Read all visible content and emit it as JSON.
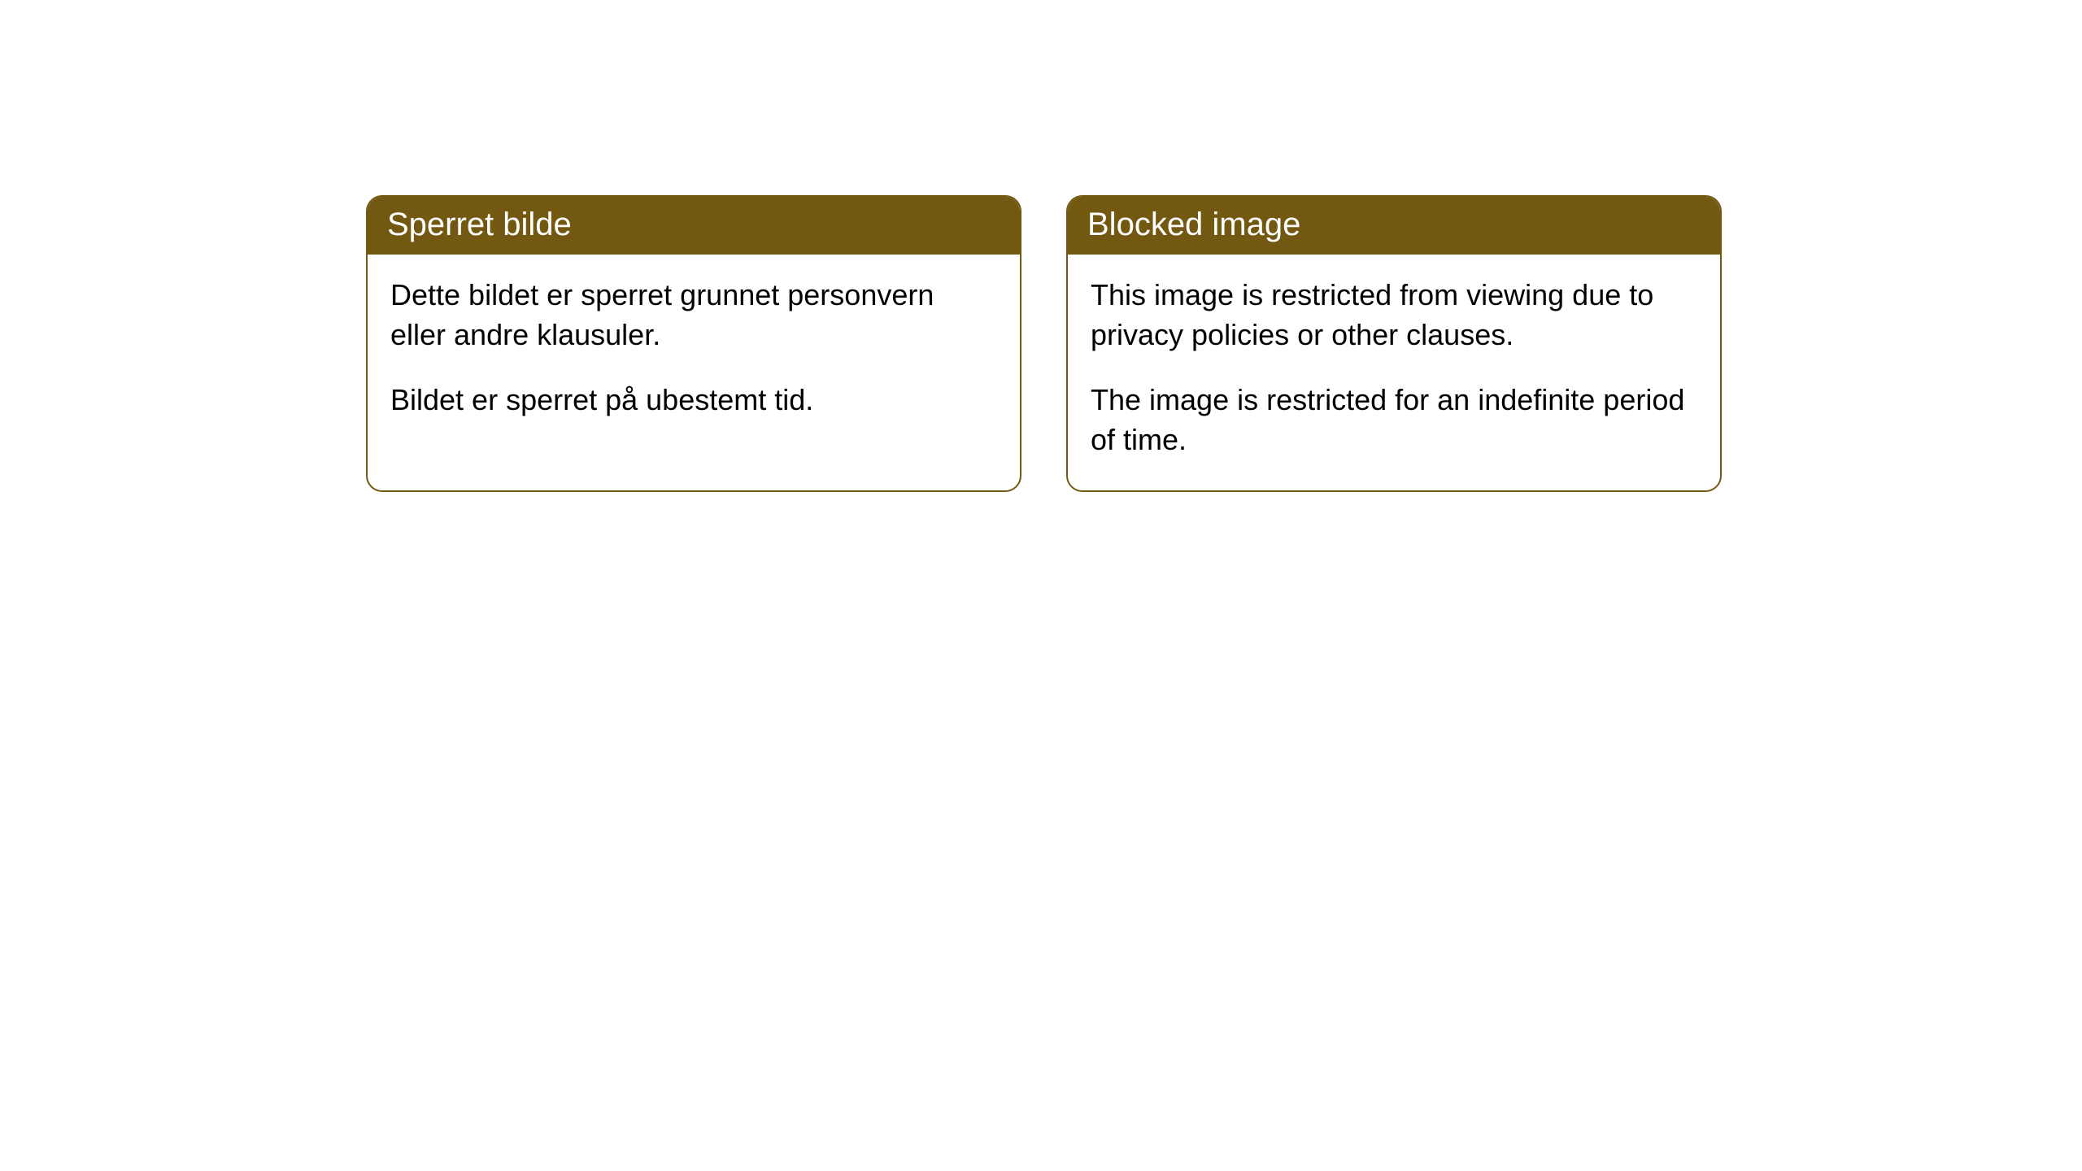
{
  "cards": [
    {
      "title": "Sperret bilde",
      "paragraph1": "Dette bildet er sperret grunnet personvern eller andre klausuler.",
      "paragraph2": "Bildet er sperret på ubestemt tid."
    },
    {
      "title": "Blocked image",
      "paragraph1": "This image is restricted from viewing due to privacy policies or other clauses.",
      "paragraph2": "The image is restricted for an indefinite period of time."
    }
  ],
  "styling": {
    "header_bg_color": "#735812",
    "header_text_color": "#ffffff",
    "border_color": "#735812",
    "body_bg_color": "#ffffff",
    "body_text_color": "#000000",
    "border_radius": 20,
    "title_fontsize": 40,
    "body_fontsize": 36
  }
}
